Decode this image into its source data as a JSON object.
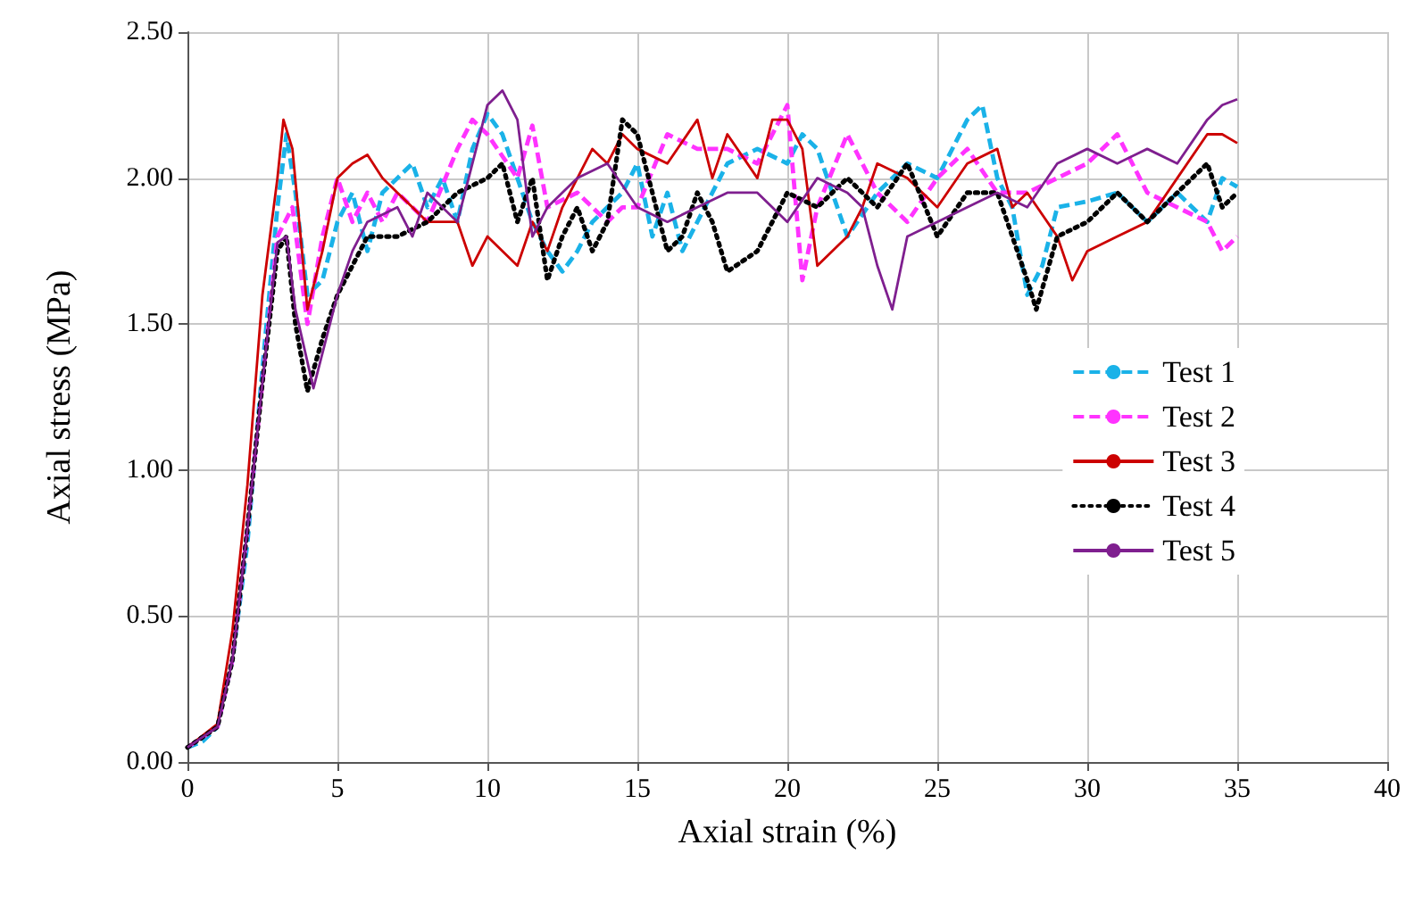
{
  "chart_data": {
    "type": "line",
    "xlabel": "Axial strain (%)",
    "ylabel": "Axial stress (MPa)",
    "xlim": [
      0,
      40
    ],
    "xticks": [
      0,
      5,
      10,
      15,
      20,
      25,
      30,
      35,
      40
    ],
    "ylim": [
      0,
      2.5
    ],
    "yticks": [
      {
        "value": 0,
        "label": "0.00"
      },
      {
        "value": 0.5,
        "label": "0.50"
      },
      {
        "value": 1,
        "label": "1.00"
      },
      {
        "value": 1.5,
        "label": "1.50"
      },
      {
        "value": 2,
        "label": "2.00"
      },
      {
        "value": 2.5,
        "label": "2.50"
      }
    ],
    "grid": true,
    "legend": "right",
    "marker": "none",
    "series": [
      {
        "name": "Test 1",
        "color": "#1ab2e8",
        "line_style": "dashed",
        "x": [
          0,
          0.5,
          1,
          1.5,
          2,
          2.5,
          3,
          3.3,
          3.6,
          4,
          4.5,
          5,
          5.5,
          6,
          6.5,
          7,
          7.5,
          8,
          8.5,
          9,
          9.5,
          10,
          10.5,
          11,
          11.5,
          12,
          12.5,
          13,
          13.5,
          14,
          14.5,
          15,
          15.5,
          16,
          16.5,
          17,
          17.5,
          18,
          19,
          20,
          20.5,
          21,
          22,
          23,
          24,
          25,
          26,
          26.5,
          27,
          27.5,
          28,
          28.5,
          29,
          30,
          31,
          32,
          33,
          34,
          34.5,
          35
        ],
        "values": [
          0.05,
          0.07,
          0.12,
          0.35,
          0.75,
          1.35,
          1.9,
          2.15,
          1.95,
          1.6,
          1.65,
          1.85,
          1.95,
          1.75,
          1.95,
          2.0,
          2.05,
          1.9,
          2.0,
          1.85,
          2.1,
          2.22,
          2.15,
          2.0,
          1.85,
          1.75,
          1.68,
          1.75,
          1.85,
          1.9,
          1.95,
          2.05,
          1.8,
          1.95,
          1.75,
          1.85,
          1.95,
          2.05,
          2.1,
          2.05,
          2.15,
          2.1,
          1.8,
          1.95,
          2.05,
          2.0,
          2.2,
          2.25,
          2.0,
          1.9,
          1.6,
          1.7,
          1.9,
          1.92,
          1.95,
          1.85,
          1.95,
          1.85,
          2.0,
          1.97
        ]
      },
      {
        "name": "Test 2",
        "color": "#ff33ff",
        "line_style": "dashed",
        "x": [
          0,
          1,
          1.5,
          2,
          2.5,
          3,
          3.5,
          4,
          4.5,
          5,
          5.5,
          6,
          6.5,
          7,
          8,
          9,
          9.5,
          10,
          11,
          11.5,
          12,
          13,
          14,
          14.5,
          15,
          16,
          17,
          18,
          19,
          20,
          20.5,
          21,
          22,
          23,
          24,
          25,
          26,
          27,
          28,
          29,
          30,
          31,
          32,
          33,
          34,
          34.5,
          35
        ],
        "values": [
          0.05,
          0.12,
          0.35,
          0.8,
          1.3,
          1.8,
          1.9,
          1.5,
          1.8,
          2.0,
          1.85,
          1.95,
          1.85,
          1.95,
          1.85,
          2.1,
          2.2,
          2.15,
          2.0,
          2.18,
          1.9,
          1.95,
          1.85,
          1.9,
          1.9,
          2.15,
          2.1,
          2.1,
          2.05,
          2.25,
          1.65,
          1.9,
          2.15,
          1.95,
          1.85,
          2.0,
          2.1,
          1.95,
          1.95,
          2.0,
          2.05,
          2.15,
          1.95,
          1.9,
          1.85,
          1.75,
          1.8
        ]
      },
      {
        "name": "Test 3",
        "color": "#cc0000",
        "line_style": "solid",
        "x": [
          0,
          1,
          1.5,
          2,
          2.5,
          3,
          3.2,
          3.5,
          4,
          4.5,
          5,
          5.5,
          6,
          6.5,
          7,
          7.5,
          8,
          9,
          9.5,
          10,
          11,
          11.5,
          12,
          12.5,
          13,
          13.5,
          14,
          14.5,
          15,
          16,
          17,
          17.5,
          18,
          19,
          19.5,
          20,
          20.5,
          21,
          22,
          22.5,
          23,
          24,
          25,
          26,
          27,
          27.5,
          28,
          29,
          29.5,
          30,
          31,
          32,
          33,
          34,
          34.5,
          35
        ],
        "values": [
          0.05,
          0.13,
          0.45,
          0.95,
          1.6,
          2.0,
          2.2,
          2.1,
          1.55,
          1.75,
          2.0,
          2.05,
          2.08,
          2.0,
          1.95,
          1.9,
          1.85,
          1.85,
          1.7,
          1.8,
          1.7,
          1.85,
          1.75,
          1.9,
          2.0,
          2.1,
          2.05,
          2.15,
          2.1,
          2.05,
          2.2,
          2.0,
          2.15,
          2.0,
          2.2,
          2.2,
          2.1,
          1.7,
          1.8,
          1.9,
          2.05,
          2.0,
          1.9,
          2.05,
          2.1,
          1.9,
          1.95,
          1.8,
          1.65,
          1.75,
          1.8,
          1.85,
          2.0,
          2.15,
          2.15,
          2.12
        ]
      },
      {
        "name": "Test 4",
        "color": "#000000",
        "line_style": "dotted",
        "x": [
          0,
          1,
          1.5,
          2,
          2.5,
          3,
          3.3,
          3.6,
          4,
          4.5,
          5,
          5.5,
          6,
          7,
          8,
          9,
          10,
          10.5,
          11,
          11.5,
          12,
          12.5,
          13,
          13.5,
          14,
          14.5,
          15,
          15.5,
          16,
          16.5,
          17,
          17.5,
          18,
          19,
          20,
          21,
          22,
          23,
          24,
          25,
          26,
          27,
          28,
          28.3,
          29,
          30,
          31,
          32,
          33,
          34,
          34.5,
          35
        ],
        "values": [
          0.05,
          0.12,
          0.35,
          0.8,
          1.3,
          1.75,
          1.8,
          1.5,
          1.27,
          1.45,
          1.6,
          1.7,
          1.8,
          1.8,
          1.85,
          1.95,
          2.0,
          2.05,
          1.85,
          2.0,
          1.65,
          1.8,
          1.9,
          1.75,
          1.85,
          2.2,
          2.15,
          1.95,
          1.75,
          1.8,
          1.95,
          1.85,
          1.68,
          1.75,
          1.95,
          1.9,
          2.0,
          1.9,
          2.05,
          1.8,
          1.95,
          1.95,
          1.65,
          1.55,
          1.8,
          1.85,
          1.95,
          1.85,
          1.95,
          2.05,
          1.9,
          1.95
        ]
      },
      {
        "name": "Test 5",
        "color": "#7f1f8f",
        "line_style": "solid",
        "x": [
          0,
          1,
          1.5,
          2,
          2.5,
          3,
          3.3,
          3.6,
          4.2,
          5,
          5.5,
          6,
          7,
          7.5,
          8,
          9,
          10,
          10.5,
          11,
          11.5,
          12,
          13,
          14,
          15,
          16,
          17,
          18,
          19,
          20,
          21,
          22,
          22.5,
          23,
          23.5,
          24,
          25,
          26,
          27,
          28,
          29,
          30,
          31,
          32,
          33,
          34,
          34.5,
          35
        ],
        "values": [
          0.05,
          0.12,
          0.35,
          0.8,
          1.3,
          1.78,
          1.8,
          1.55,
          1.28,
          1.6,
          1.75,
          1.85,
          1.9,
          1.8,
          1.95,
          1.85,
          2.25,
          2.3,
          2.2,
          1.8,
          1.9,
          2.0,
          2.05,
          1.9,
          1.85,
          1.9,
          1.95,
          1.95,
          1.85,
          2.0,
          1.95,
          1.9,
          1.7,
          1.55,
          1.8,
          1.85,
          1.9,
          1.95,
          1.9,
          2.05,
          2.1,
          2.05,
          2.1,
          2.05,
          2.2,
          2.25,
          2.27
        ]
      }
    ]
  }
}
